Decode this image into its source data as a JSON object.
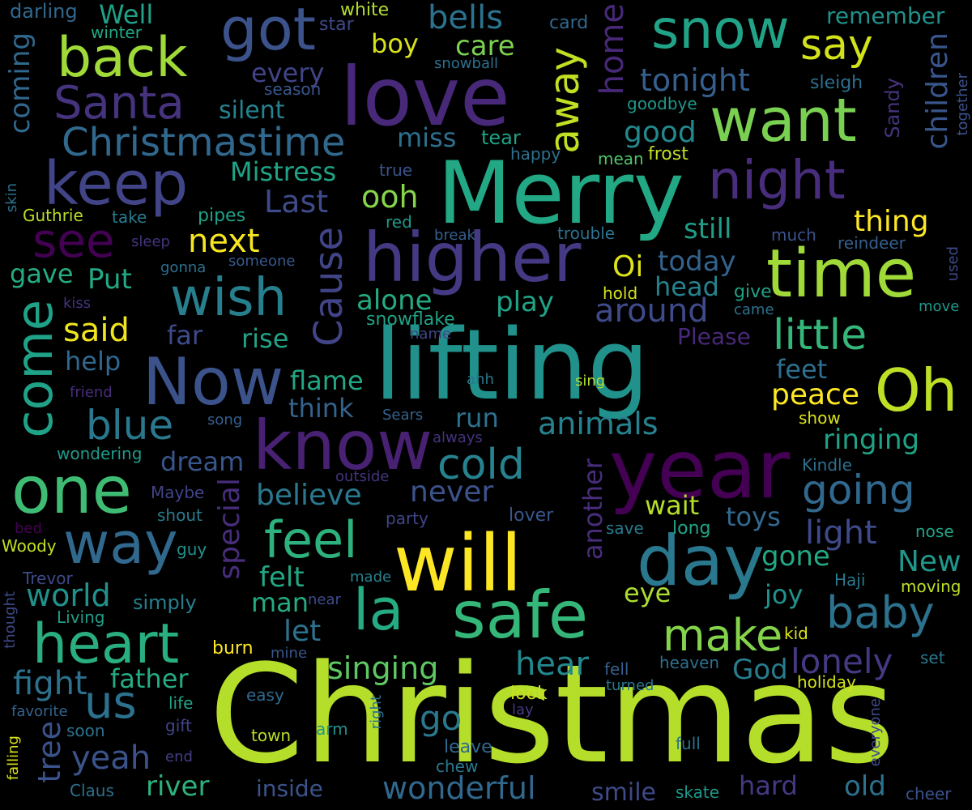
{
  "cloud": {
    "words": [
      {
        "text": "Christmas",
        "color": "#b5de2b"
      },
      {
        "text": "lifting",
        "color": "#21918c"
      },
      {
        "text": "Merry",
        "color": "#22a884"
      },
      {
        "text": "love",
        "color": "#482878"
      },
      {
        "text": "higher",
        "color": "#443983"
      },
      {
        "text": "year",
        "color": "#440154"
      },
      {
        "text": "will",
        "color": "#fde725"
      },
      {
        "text": "safe",
        "color": "#35b779"
      },
      {
        "text": "know",
        "color": "#482173"
      },
      {
        "text": "time",
        "color": "#a0da39"
      },
      {
        "text": "one",
        "color": "#3fbc73"
      },
      {
        "text": "day",
        "color": "#2a788e"
      },
      {
        "text": "Now",
        "color": "#3b528b"
      },
      {
        "text": "keep",
        "color": "#414487"
      },
      {
        "text": "heart",
        "color": "#29af7f"
      },
      {
        "text": "way",
        "color": "#31688e"
      },
      {
        "text": "want",
        "color": "#7ad151"
      },
      {
        "text": "night",
        "color": "#472d7b"
      },
      {
        "text": "snow",
        "color": "#20a386"
      },
      {
        "text": "back",
        "color": "#a0da39"
      },
      {
        "text": "got",
        "color": "#3b528b"
      },
      {
        "text": "Oh",
        "color": "#bddf26"
      },
      {
        "text": "la",
        "color": "#25ab82"
      },
      {
        "text": "come",
        "color": "#1fa287"
      },
      {
        "text": "wish",
        "color": "#277f8e"
      },
      {
        "text": "Santa",
        "color": "#46337e"
      },
      {
        "text": "see",
        "color": "#440154"
      },
      {
        "text": "make",
        "color": "#84d44b"
      },
      {
        "text": "baby",
        "color": "#2c728e"
      },
      {
        "text": "feel",
        "color": "#2db27d"
      },
      {
        "text": "little",
        "color": "#35b779"
      },
      {
        "text": "going",
        "color": "#31688e"
      },
      {
        "text": "Christmastime",
        "color": "#31688e"
      },
      {
        "text": "away",
        "color": "#c2df23"
      },
      {
        "text": "say",
        "color": "#d2e21b"
      },
      {
        "text": "Cause",
        "color": "#414487"
      },
      {
        "text": "blue",
        "color": "#2a788e"
      },
      {
        "text": "cold",
        "color": "#26828e"
      },
      {
        "text": "us",
        "color": "#2c728e"
      },
      {
        "text": "hear",
        "color": "#23888e"
      },
      {
        "text": "home",
        "color": "#482878"
      },
      {
        "text": "yeah",
        "color": "#3b528b"
      },
      {
        "text": "tonight",
        "color": "#355f8d"
      },
      {
        "text": "bells",
        "color": "#2c728e"
      },
      {
        "text": "special",
        "color": "#472d7b"
      },
      {
        "text": "children",
        "color": "#39568c"
      },
      {
        "text": "lonely",
        "color": "#443983"
      },
      {
        "text": "good",
        "color": "#23888e"
      },
      {
        "text": "around",
        "color": "#3e4a89"
      },
      {
        "text": "animals",
        "color": "#26828e"
      },
      {
        "text": "next",
        "color": "#f6e620"
      },
      {
        "text": "thing",
        "color": "#fde725"
      },
      {
        "text": "world",
        "color": "#21918c"
      },
      {
        "text": "light",
        "color": "#3e4a89"
      },
      {
        "text": "New",
        "color": "#1f988b"
      },
      {
        "text": "singing",
        "color": "#5ec962"
      },
      {
        "text": "Last",
        "color": "#3e4a89"
      },
      {
        "text": "ooh",
        "color": "#86d549"
      },
      {
        "text": "said",
        "color": "#f1e51d"
      },
      {
        "text": "fight",
        "color": "#2c728e"
      },
      {
        "text": "tree",
        "color": "#3b528b"
      },
      {
        "text": "go",
        "color": "#2a788e"
      },
      {
        "text": "wonderful",
        "color": "#31688e"
      },
      {
        "text": "coming",
        "color": "#31688e"
      },
      {
        "text": "Mistress",
        "color": "#20a386"
      },
      {
        "text": "believe",
        "color": "#2a788e"
      },
      {
        "text": "never",
        "color": "#3b528b"
      },
      {
        "text": "another",
        "color": "#472d7b"
      },
      {
        "text": "Oi",
        "color": "#dde318"
      },
      {
        "text": "play",
        "color": "#20a386"
      },
      {
        "text": "alone",
        "color": "#25ab82"
      },
      {
        "text": "still",
        "color": "#1f9e89"
      },
      {
        "text": "today",
        "color": "#33638d"
      },
      {
        "text": "head",
        "color": "#26828e"
      },
      {
        "text": "peace",
        "color": "#fde725"
      },
      {
        "text": "ringing",
        "color": "#1fa287"
      },
      {
        "text": "feet",
        "color": "#2d708e"
      },
      {
        "text": "gone",
        "color": "#22a884"
      },
      {
        "text": "baby_",
        "color": "#2c728e"
      },
      {
        "text": "joy",
        "color": "#21918c"
      },
      {
        "text": "eye",
        "color": "#addc30"
      },
      {
        "text": "God",
        "color": "#287c8e"
      },
      {
        "text": "father",
        "color": "#25ab82"
      },
      {
        "text": "river",
        "color": "#2db27d"
      },
      {
        "text": "inside",
        "color": "#3b528b"
      },
      {
        "text": "smile",
        "color": "#3e4a89"
      },
      {
        "text": "hard",
        "color": "#443983"
      },
      {
        "text": "old",
        "color": "#2c728e"
      },
      {
        "text": "let",
        "color": "#2c728e"
      },
      {
        "text": "felt",
        "color": "#22a884"
      },
      {
        "text": "man",
        "color": "#25ab82"
      },
      {
        "text": "rise",
        "color": "#20a386"
      },
      {
        "text": "far",
        "color": "#3e4a89"
      },
      {
        "text": "help",
        "color": "#31688e"
      },
      {
        "text": "gave",
        "color": "#25ab82"
      },
      {
        "text": "Put",
        "color": "#22a884"
      },
      {
        "text": "dream",
        "color": "#39568c"
      },
      {
        "text": "flame",
        "color": "#22a884"
      },
      {
        "text": "think",
        "color": "#33638d"
      },
      {
        "text": "run",
        "color": "#2c728e"
      },
      {
        "text": "wait",
        "color": "#b5de2b"
      },
      {
        "text": "toys",
        "color": "#31688e"
      },
      {
        "text": "care",
        "color": "#7ad151"
      },
      {
        "text": "boy",
        "color": "#d8e219"
      },
      {
        "text": "every",
        "color": "#414487"
      },
      {
        "text": "miss",
        "color": "#2d708e"
      },
      {
        "text": "silent",
        "color": "#26828e"
      },
      {
        "text": "Well",
        "color": "#1fa187"
      },
      {
        "text": "remember",
        "color": "#21918c"
      },
      {
        "text": "Please",
        "color": "#482878"
      },
      {
        "text": "simply",
        "color": "#277f8e"
      },
      {
        "text": "pipes",
        "color": "#1fa187"
      },
      {
        "text": "take",
        "color": "#287c8e"
      },
      {
        "text": "sleep",
        "color": "#46337e"
      },
      {
        "text": "gonna",
        "color": "#2d708e"
      },
      {
        "text": "someone",
        "color": "#38588c"
      },
      {
        "text": "Guthrie",
        "color": "#b8de29"
      },
      {
        "text": "skin",
        "color": "#2c728e"
      },
      {
        "text": "kiss",
        "color": "#46337e"
      },
      {
        "text": "friend",
        "color": "#472d7b"
      },
      {
        "text": "wondering",
        "color": "#1f9a8a"
      },
      {
        "text": "song",
        "color": "#355f8d"
      },
      {
        "text": "Sears",
        "color": "#33638d"
      },
      {
        "text": "always",
        "color": "#46337e"
      },
      {
        "text": "outside",
        "color": "#46337e"
      },
      {
        "text": "party",
        "color": "#404688"
      },
      {
        "text": "lover",
        "color": "#39568c"
      },
      {
        "text": "save",
        "color": "#2a788e"
      },
      {
        "text": "long",
        "color": "#20a386"
      },
      {
        "text": "Maybe",
        "color": "#414487"
      },
      {
        "text": "shout",
        "color": "#287c8e"
      },
      {
        "text": "bed",
        "color": "#440154"
      },
      {
        "text": "Woody",
        "color": "#c0df25"
      },
      {
        "text": "guy",
        "color": "#21918c"
      },
      {
        "text": "Trevor",
        "color": "#3e4a89"
      },
      {
        "text": "made",
        "color": "#26828e"
      },
      {
        "text": "near",
        "color": "#3e4a89"
      },
      {
        "text": "thought",
        "color": "#3e4a89"
      },
      {
        "text": "Living",
        "color": "#1f9e89"
      },
      {
        "text": "mine",
        "color": "#39568c"
      },
      {
        "text": "burn",
        "color": "#fde725"
      },
      {
        "text": "easy",
        "color": "#31688e"
      },
      {
        "text": "favorite",
        "color": "#33638d"
      },
      {
        "text": "life",
        "color": "#20a386"
      },
      {
        "text": "gift",
        "color": "#404688"
      },
      {
        "text": "soon",
        "color": "#2c728e"
      },
      {
        "text": "end",
        "color": "#433e85"
      },
      {
        "text": "falling",
        "color": "#dae319"
      },
      {
        "text": "Claus",
        "color": "#2d708e"
      },
      {
        "text": "town",
        "color": "#b8de29"
      },
      {
        "text": "arm",
        "color": "#21918c"
      },
      {
        "text": "right",
        "color": "#2c728e"
      },
      {
        "text": "chew",
        "color": "#2a788e"
      },
      {
        "text": "leave",
        "color": "#31688e"
      },
      {
        "text": "look",
        "color": "#c8e020"
      },
      {
        "text": "lay",
        "color": "#443983"
      },
      {
        "text": "skate",
        "color": "#1f988b"
      },
      {
        "text": "full",
        "color": "#2c728e"
      },
      {
        "text": "cheer",
        "color": "#3b528b"
      },
      {
        "text": "everyone",
        "color": "#3e4a89"
      },
      {
        "text": "heaven",
        "color": "#2d708e"
      },
      {
        "text": "fell",
        "color": "#355f8d"
      },
      {
        "text": "turned",
        "color": "#2a788e"
      },
      {
        "text": "holiday",
        "color": "#d5e21a"
      },
      {
        "text": "set",
        "color": "#2a788e"
      },
      {
        "text": "kid",
        "color": "#dde318"
      },
      {
        "text": "moving",
        "color": "#bddf26"
      },
      {
        "text": "Haji",
        "color": "#2a788e"
      },
      {
        "text": "nose",
        "color": "#20a386"
      },
      {
        "text": "Kindle",
        "color": "#2d708e"
      },
      {
        "text": "show",
        "color": "#d8e219"
      },
      {
        "text": "sing",
        "color": "#b2dd2d"
      },
      {
        "text": "ahh",
        "color": "#2a788e"
      },
      {
        "text": "name",
        "color": "#404688"
      },
      {
        "text": "snowflake",
        "color": "#20a386"
      },
      {
        "text": "hold",
        "color": "#d5e21a"
      },
      {
        "text": "came",
        "color": "#2c728e"
      },
      {
        "text": "give",
        "color": "#1fa287"
      },
      {
        "text": "move",
        "color": "#1f988b"
      },
      {
        "text": "used",
        "color": "#3e4a89"
      },
      {
        "text": "reindeer",
        "color": "#355f8d"
      },
      {
        "text": "much",
        "color": "#3b528b"
      },
      {
        "text": "trouble",
        "color": "#2c728e"
      },
      {
        "text": "break",
        "color": "#355f8d"
      },
      {
        "text": "red",
        "color": "#1f9a8a"
      },
      {
        "text": "true",
        "color": "#3b528b"
      },
      {
        "text": "mean",
        "color": "#52c569"
      },
      {
        "text": "frost",
        "color": "#c0df25"
      },
      {
        "text": "Sandy",
        "color": "#46337e"
      },
      {
        "text": "together",
        "color": "#3b528b"
      },
      {
        "text": "happy",
        "color": "#2c728e"
      },
      {
        "text": "tear",
        "color": "#1fa187"
      },
      {
        "text": "goodbye",
        "color": "#1f988b"
      },
      {
        "text": "sleigh",
        "color": "#2d708e"
      },
      {
        "text": "snowball",
        "color": "#2d708e"
      },
      {
        "text": "season",
        "color": "#39568c"
      },
      {
        "text": "star",
        "color": "#3e4a89"
      },
      {
        "text": "card",
        "color": "#31688e"
      },
      {
        "text": "white",
        "color": "#b2dd2d"
      },
      {
        "text": "winter",
        "color": "#22a884"
      },
      {
        "text": "darling",
        "color": "#31688e"
      }
    ]
  }
}
